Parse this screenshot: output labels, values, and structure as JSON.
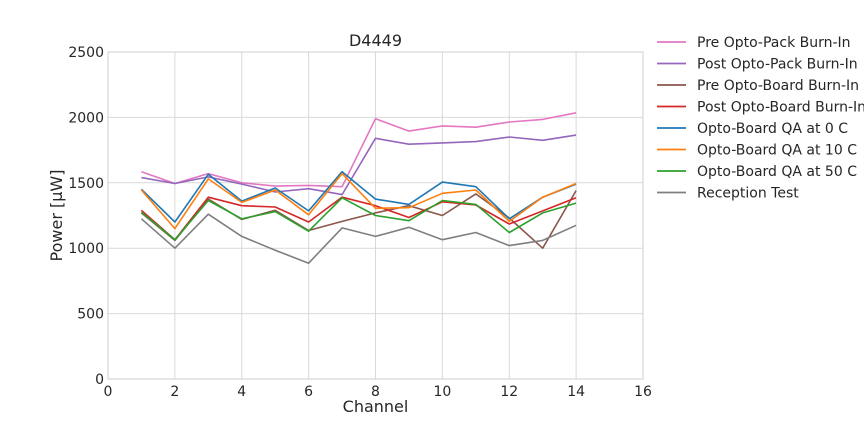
{
  "chart_data": {
    "type": "line",
    "title": "D4449",
    "xlabel": "Channel",
    "ylabel": "Power [μW]",
    "xlim": [
      0,
      16
    ],
    "ylim": [
      0,
      2500
    ],
    "xticks": [
      0,
      2,
      4,
      6,
      8,
      10,
      12,
      14,
      16
    ],
    "yticks": [
      0,
      500,
      1000,
      1500,
      2000,
      2500
    ],
    "grid": true,
    "legend_position": "outside-right-top",
    "x": [
      1,
      2,
      3,
      4,
      5,
      6,
      7,
      8,
      9,
      10,
      11,
      12,
      13,
      14
    ],
    "series": [
      {
        "name": "Pre Opto-Pack Burn-In",
        "color": "#e377c2",
        "values": [
          1585,
          1495,
          1570,
          1500,
          1475,
          1480,
          1470,
          1990,
          1895,
          1935,
          1925,
          1965,
          1985,
          2035
        ]
      },
      {
        "name": "Post Opto-Pack Burn-In",
        "color": "#9467bd",
        "values": [
          1540,
          1495,
          1545,
          1490,
          1430,
          1455,
          1410,
          1840,
          1795,
          1805,
          1815,
          1850,
          1825,
          1865
        ]
      },
      {
        "name": "Pre Opto-Board Burn-In",
        "color": "#8c564b",
        "values": [
          1270,
          1060,
          1375,
          1220,
          1290,
          1135,
          1205,
          1270,
          1325,
          1250,
          1415,
          1230,
          1000,
          1440
        ]
      },
      {
        "name": "Post Opto-Board Burn-In",
        "color": "#d62728",
        "values": [
          1290,
          1065,
          1390,
          1325,
          1315,
          1200,
          1390,
          1325,
          1235,
          1355,
          1330,
          1185,
          1285,
          1385
        ]
      },
      {
        "name": "Opto-Board QA at 0 C",
        "color": "#1f77b4",
        "values": [
          1450,
          1200,
          1565,
          1360,
          1460,
          1285,
          1585,
          1375,
          1335,
          1505,
          1470,
          1225,
          1390,
          1490
        ]
      },
      {
        "name": "Opto-Board QA at 10 C",
        "color": "#ff7f0e",
        "values": [
          1445,
          1150,
          1530,
          1350,
          1445,
          1255,
          1570,
          1305,
          1310,
          1420,
          1445,
          1205,
          1390,
          1495
        ]
      },
      {
        "name": "Opto-Board QA at 50 C",
        "color": "#2ca02c",
        "values": [
          1275,
          1065,
          1365,
          1225,
          1280,
          1130,
          1385,
          1250,
          1210,
          1365,
          1335,
          1120,
          1270,
          1345
        ]
      },
      {
        "name": "Reception Test",
        "color": "#7f7f7f",
        "values": [
          1225,
          1000,
          1260,
          1090,
          985,
          885,
          1155,
          1090,
          1160,
          1065,
          1120,
          1020,
          1060,
          1175
        ]
      }
    ]
  }
}
